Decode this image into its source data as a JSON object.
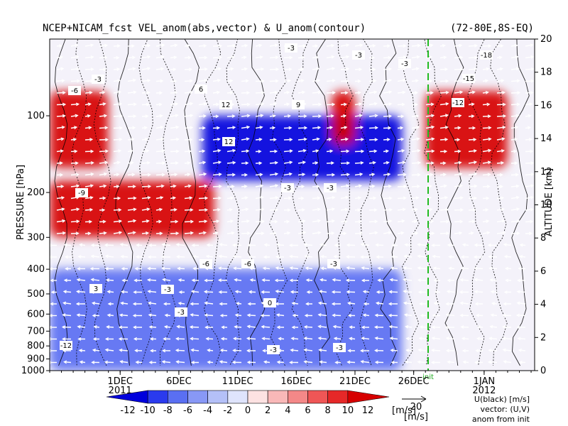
{
  "chart_data": {
    "type": "heatmap",
    "title": "NCEP+NICAM_fcst VEL_anom(abs,vector) & U_anom(contour)",
    "region": "(72-80E,8S-EQ)",
    "ylabel_left": "PRESSURE [hPa]",
    "ylabel_right": "ALTITUDE [km]",
    "pressure_ticks": [
      "100",
      "200",
      "300",
      "400",
      "500",
      "600",
      "700",
      "800",
      "900",
      "1000"
    ],
    "pressure_values": [
      100,
      200,
      300,
      400,
      500,
      600,
      700,
      800,
      900,
      1000
    ],
    "pressure_range": [
      1000,
      50
    ],
    "altitude_ticks": [
      "0",
      "2",
      "4",
      "6",
      "8",
      "10",
      "12",
      "14",
      "16",
      "18",
      "20"
    ],
    "altitude_values": [
      0,
      2,
      4,
      6,
      8,
      10,
      12,
      14,
      16,
      18,
      20
    ],
    "date_ticks": [
      "1DEC",
      "6DEC",
      "11DEC",
      "16DEC",
      "21DEC",
      "26DEC",
      "1JAN"
    ],
    "date_years": [
      "2011",
      "2012"
    ],
    "fcst_marker_label": "init",
    "colorbar": {
      "levels": [
        "-12",
        "-10",
        "-8",
        "-6",
        "-4",
        "-2",
        "0",
        "2",
        "4",
        "6",
        "8",
        "10",
        "12"
      ],
      "unit": "[m/s]",
      "colors": [
        "#0000dc",
        "#2a3aee",
        "#5a6ff2",
        "#8898f6",
        "#b4c0f8",
        "#dfe4fc",
        "#fde2e2",
        "#f9b8b8",
        "#f48888",
        "#ef5656",
        "#e62828",
        "#d60000"
      ]
    },
    "vector_ref": {
      "value": "20",
      "unit": "[m/s]"
    },
    "notes": [
      "U(black) [m/s]",
      "vector: (U,V)",
      "anom from init"
    ],
    "contour_labels": [
      "0",
      "-3",
      "-6",
      "-9",
      "-12",
      "-15",
      "-18",
      "3",
      "6",
      "9",
      "12"
    ],
    "anomaly_regions": [
      {
        "sign": "positive",
        "date_start": "25NOV",
        "date_end": "9DEC",
        "pressure_top": 180,
        "pressure_bottom": 300,
        "peak": 10
      },
      {
        "sign": "positive",
        "date_start": "25NOV",
        "date_end": "30NOV",
        "pressure_top": 80,
        "pressure_bottom": 160,
        "peak": 10
      },
      {
        "sign": "negative",
        "date_start": "8DEC",
        "date_end": "25DEC",
        "pressure_top": 100,
        "pressure_bottom": 180,
        "peak": -12
      },
      {
        "sign": "negative",
        "date_start": "25NOV",
        "date_end": "25DEC",
        "pressure_top": 400,
        "pressure_bottom": 1000,
        "peak": -8
      },
      {
        "sign": "positive",
        "date_start": "27DEC",
        "date_end": "3JAN",
        "pressure_top": 80,
        "pressure_bottom": 160,
        "peak": 12
      },
      {
        "sign": "positive",
        "date_start": "19DEC",
        "date_end": "21DEC",
        "pressure_top": 80,
        "pressure_bottom": 130,
        "peak": 10
      }
    ]
  }
}
